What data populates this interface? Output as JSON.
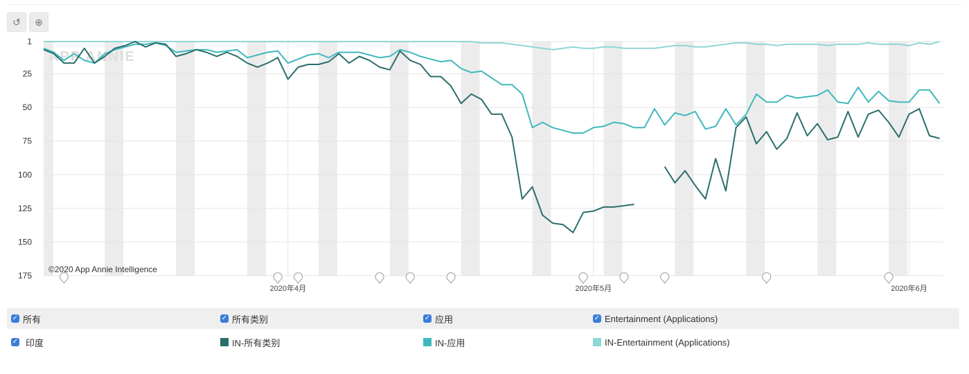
{
  "toolbar": {
    "reset_icon": "reset-icon",
    "zoom_icon": "zoom-icon"
  },
  "watermark": "APP ANNIE",
  "copyright": "©2020 App Annie Intelligence",
  "legend": {
    "filters": [
      {
        "label": "所有",
        "checked": true
      },
      {
        "label": "所有类别",
        "checked": true
      },
      {
        "label": "应用",
        "checked": true
      },
      {
        "label": "Entertainment (Applications)",
        "checked": true
      }
    ],
    "country": {
      "label": "印度",
      "checked": true
    },
    "series": [
      {
        "label": "IN-所有类别",
        "color": "#2a6e6c"
      },
      {
        "label": "IN-应用",
        "color": "#3fb8bd"
      },
      {
        "label": "IN-Entertainment (Applications)",
        "color": "#8fd6d6"
      }
    ]
  },
  "chart_data": {
    "type": "line",
    "y_reversed": true,
    "ylim": [
      1,
      175
    ],
    "yticks": [
      "1",
      "25",
      "50",
      "75",
      "100",
      "125",
      "150",
      "175"
    ],
    "xticks": [
      {
        "label": "2020年4月",
        "date": "2020-04-01"
      },
      {
        "label": "2020年5月",
        "date": "2020-05-01"
      },
      {
        "label": "2020年6月",
        "date": "2020-06-01"
      }
    ],
    "grid": true,
    "weekend_shading": true,
    "event_markers": [
      "2020-03-10",
      "2020-03-31",
      "2020-04-02",
      "2020-04-10",
      "2020-04-13",
      "2020-04-17",
      "2020-04-30",
      "2020-05-04",
      "2020-05-08",
      "2020-05-18",
      "2020-05-30"
    ],
    "x": [
      "2020-03-08",
      "2020-03-09",
      "2020-03-10",
      "2020-03-11",
      "2020-03-12",
      "2020-03-13",
      "2020-03-14",
      "2020-03-15",
      "2020-03-16",
      "2020-03-17",
      "2020-03-18",
      "2020-03-19",
      "2020-03-20",
      "2020-03-21",
      "2020-03-22",
      "2020-03-23",
      "2020-03-24",
      "2020-03-25",
      "2020-03-26",
      "2020-03-27",
      "2020-03-28",
      "2020-03-29",
      "2020-03-30",
      "2020-03-31",
      "2020-04-01",
      "2020-04-02",
      "2020-04-03",
      "2020-04-04",
      "2020-04-05",
      "2020-04-06",
      "2020-04-07",
      "2020-04-08",
      "2020-04-09",
      "2020-04-10",
      "2020-04-11",
      "2020-04-12",
      "2020-04-13",
      "2020-04-14",
      "2020-04-15",
      "2020-04-16",
      "2020-04-17",
      "2020-04-18",
      "2020-04-19",
      "2020-04-20",
      "2020-04-21",
      "2020-04-22",
      "2020-04-23",
      "2020-04-24",
      "2020-04-25",
      "2020-04-26",
      "2020-04-27",
      "2020-04-28",
      "2020-04-29",
      "2020-04-30",
      "2020-05-01",
      "2020-05-02",
      "2020-05-03",
      "2020-05-04",
      "2020-05-05",
      "2020-05-06",
      "2020-05-07",
      "2020-05-08",
      "2020-05-09",
      "2020-05-10",
      "2020-05-11",
      "2020-05-12",
      "2020-05-13",
      "2020-05-14",
      "2020-05-15",
      "2020-05-16",
      "2020-05-17",
      "2020-05-18",
      "2020-05-19",
      "2020-05-20",
      "2020-05-21",
      "2020-05-22",
      "2020-05-23",
      "2020-05-24",
      "2020-05-25",
      "2020-05-26",
      "2020-05-27",
      "2020-05-28",
      "2020-05-29",
      "2020-05-30",
      "2020-05-31",
      "2020-06-01",
      "2020-06-02",
      "2020-06-03",
      "2020-06-04"
    ],
    "series": [
      {
        "name": "IN-Entertainment (Applications)",
        "color": "#8fd6d6",
        "values": [
          1,
          1,
          1,
          1,
          1,
          1,
          1,
          1,
          1,
          1,
          1,
          1,
          1,
          1,
          1,
          1,
          1,
          1,
          1,
          1,
          1,
          1,
          1,
          1,
          1,
          1,
          1,
          1,
          1,
          1,
          1,
          1,
          1,
          1,
          1,
          1,
          1,
          1,
          1,
          1,
          1,
          1,
          1,
          2,
          2,
          2,
          3,
          4,
          5,
          6,
          7,
          6,
          5,
          6,
          6,
          5,
          5,
          6,
          6,
          6,
          6,
          5,
          4,
          4,
          5,
          5,
          4,
          3,
          2,
          2,
          3,
          3,
          4,
          3,
          3,
          3,
          3,
          4,
          3,
          3,
          3,
          2,
          3,
          3,
          3,
          4,
          2,
          3,
          1
        ]
      },
      {
        "name": "IN-应用",
        "color": "#3fb8bd",
        "values": [
          6,
          9,
          15,
          10,
          15,
          17,
          10,
          7,
          5,
          3,
          3,
          2,
          4,
          9,
          8,
          7,
          7,
          9,
          8,
          7,
          13,
          11,
          9,
          8,
          17,
          14,
          11,
          10,
          13,
          9,
          9,
          9,
          11,
          13,
          12,
          7,
          9,
          12,
          14,
          16,
          15,
          21,
          24,
          23,
          28,
          33,
          33,
          40,
          65,
          61,
          65,
          67,
          69,
          69,
          65,
          64,
          61,
          62,
          65,
          65,
          51,
          63,
          54,
          56,
          53,
          66,
          64,
          51,
          63,
          55,
          40,
          46,
          46,
          41,
          43,
          42,
          41,
          37,
          46,
          47,
          35,
          46,
          38,
          45,
          46,
          46,
          37,
          37,
          47
        ]
      },
      {
        "name": "IN-所有类别",
        "color": "#2a6e6c",
        "values": [
          7,
          10,
          17,
          17,
          6,
          17,
          12,
          6,
          4,
          1,
          5,
          2,
          3,
          12,
          10,
          7,
          9,
          12,
          9,
          12,
          17,
          20,
          17,
          13,
          29,
          20,
          18,
          18,
          16,
          10,
          17,
          12,
          15,
          20,
          22,
          8,
          15,
          18,
          27,
          27,
          34,
          47,
          40,
          44,
          55,
          55,
          72,
          118,
          109,
          130,
          136,
          137,
          143,
          128,
          127,
          124,
          124,
          123,
          122,
          null,
          null,
          94,
          106,
          97,
          108,
          118,
          88,
          112,
          65,
          57,
          77,
          68,
          81,
          73,
          54,
          71,
          62,
          74,
          72,
          53,
          72,
          55,
          52,
          61,
          72,
          55,
          51,
          71,
          73
        ]
      }
    ]
  }
}
